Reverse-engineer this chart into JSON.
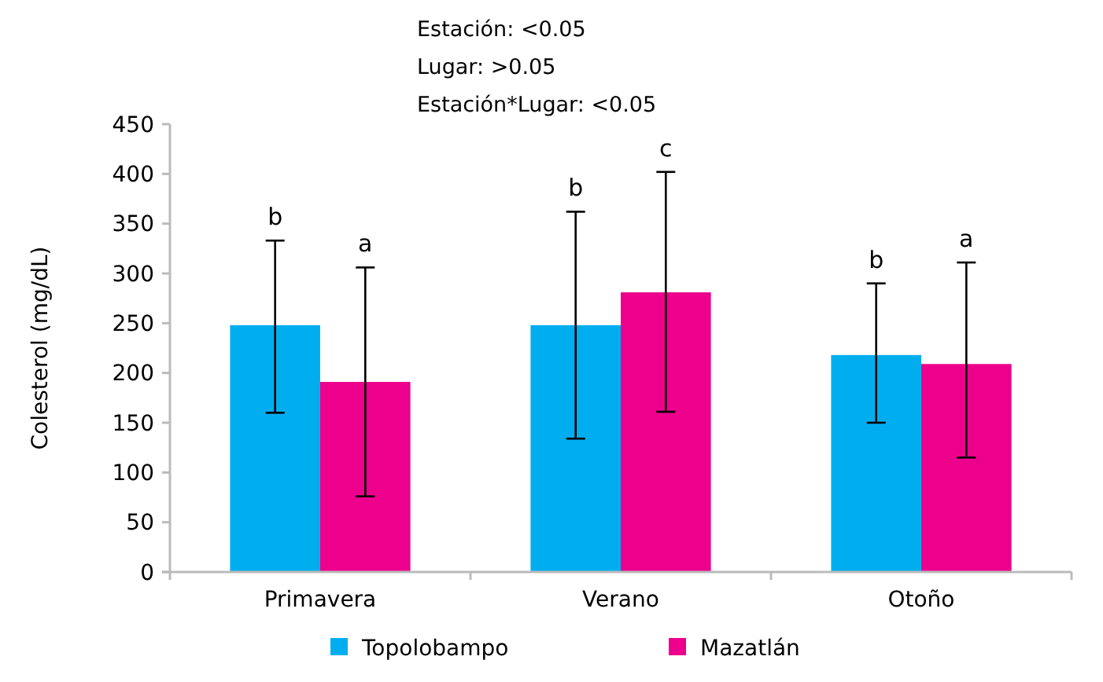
{
  "chart_data": {
    "type": "bar",
    "ylabel": "Colesterol (mg/dL)",
    "categories": [
      "Primavera",
      "Verano",
      "Otoño"
    ],
    "series": [
      {
        "name": "Topolobampo",
        "color": "#00aeef",
        "values": [
          248,
          248,
          218
        ],
        "errors": [
          [
            160,
            333
          ],
          [
            134,
            362
          ],
          [
            150,
            290
          ]
        ]
      },
      {
        "name": "Mazatlán",
        "color": "#ec008c",
        "values": [
          191,
          281,
          209
        ],
        "errors": [
          [
            76,
            306
          ],
          [
            161,
            402
          ],
          [
            115,
            311
          ]
        ]
      }
    ],
    "ylim": [
      0,
      450
    ],
    "yticks": [
      0,
      50,
      100,
      150,
      200,
      250,
      300,
      350,
      400,
      450
    ],
    "grid": false,
    "legend": "bottom",
    "annotations": [
      "Estación: <0.05",
      "Lugar: >0.05",
      "Estación*Lugar: <0.05",
      "b",
      "a",
      "b",
      "c",
      "b",
      "a"
    ]
  }
}
